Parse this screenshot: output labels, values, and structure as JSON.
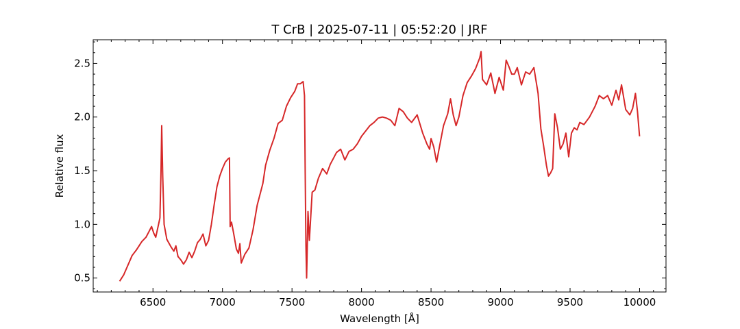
{
  "chart_data": {
    "type": "line",
    "title": "T CrB | 2025-07-11 | 05:52:20 | JRF",
    "xlabel": "Wavelength [Å]",
    "ylabel": "Relative flux",
    "xlim": [
      6070,
      10190
    ],
    "ylim": [
      0.37,
      2.72
    ],
    "x_ticks": [
      6500,
      7000,
      7500,
      8000,
      8500,
      9000,
      9500,
      10000
    ],
    "y_ticks": [
      0.5,
      1.0,
      1.5,
      2.0,
      2.5
    ],
    "x_tick_labels": [
      "6500",
      "7000",
      "7500",
      "8000",
      "8500",
      "9000",
      "9500",
      "10000"
    ],
    "y_tick_labels": [
      "0.5",
      "1.0",
      "1.5",
      "2.0",
      "2.5"
    ],
    "grid": false,
    "series": [
      {
        "color": "#d62728",
        "points": [
          [
            6260,
            0.47
          ],
          [
            6290,
            0.53
          ],
          [
            6320,
            0.62
          ],
          [
            6350,
            0.71
          ],
          [
            6380,
            0.76
          ],
          [
            6420,
            0.84
          ],
          [
            6450,
            0.88
          ],
          [
            6470,
            0.93
          ],
          [
            6490,
            0.98
          ],
          [
            6505,
            0.92
          ],
          [
            6520,
            0.88
          ],
          [
            6540,
            1.0
          ],
          [
            6550,
            1.06
          ],
          [
            6558,
            1.5
          ],
          [
            6563,
            1.92
          ],
          [
            6570,
            1.45
          ],
          [
            6580,
            1.0
          ],
          [
            6600,
            0.86
          ],
          [
            6630,
            0.79
          ],
          [
            6650,
            0.75
          ],
          [
            6665,
            0.8
          ],
          [
            6680,
            0.7
          ],
          [
            6700,
            0.67
          ],
          [
            6720,
            0.63
          ],
          [
            6740,
            0.67
          ],
          [
            6760,
            0.74
          ],
          [
            6780,
            0.69
          ],
          [
            6800,
            0.75
          ],
          [
            6820,
            0.83
          ],
          [
            6840,
            0.86
          ],
          [
            6860,
            0.91
          ],
          [
            6880,
            0.8
          ],
          [
            6900,
            0.85
          ],
          [
            6920,
            1.0
          ],
          [
            6940,
            1.18
          ],
          [
            6960,
            1.35
          ],
          [
            6980,
            1.45
          ],
          [
            7000,
            1.52
          ],
          [
            7020,
            1.58
          ],
          [
            7040,
            1.61
          ],
          [
            7050,
            1.62
          ],
          [
            7055,
            0.98
          ],
          [
            7065,
            1.02
          ],
          [
            7080,
            0.92
          ],
          [
            7100,
            0.77
          ],
          [
            7115,
            0.73
          ],
          [
            7125,
            0.82
          ],
          [
            7135,
            0.64
          ],
          [
            7160,
            0.72
          ],
          [
            7190,
            0.78
          ],
          [
            7220,
            0.95
          ],
          [
            7250,
            1.18
          ],
          [
            7270,
            1.28
          ],
          [
            7290,
            1.38
          ],
          [
            7310,
            1.55
          ],
          [
            7340,
            1.69
          ],
          [
            7370,
            1.8
          ],
          [
            7400,
            1.94
          ],
          [
            7430,
            1.97
          ],
          [
            7460,
            2.1
          ],
          [
            7490,
            2.18
          ],
          [
            7520,
            2.24
          ],
          [
            7540,
            2.31
          ],
          [
            7560,
            2.31
          ],
          [
            7580,
            2.33
          ],
          [
            7590,
            2.2
          ],
          [
            7595,
            1.5
          ],
          [
            7600,
            0.8
          ],
          [
            7605,
            0.5
          ],
          [
            7615,
            1.12
          ],
          [
            7625,
            0.85
          ],
          [
            7635,
            1.08
          ],
          [
            7645,
            1.3
          ],
          [
            7665,
            1.32
          ],
          [
            7690,
            1.43
          ],
          [
            7720,
            1.52
          ],
          [
            7750,
            1.47
          ],
          [
            7775,
            1.56
          ],
          [
            7800,
            1.62
          ],
          [
            7820,
            1.67
          ],
          [
            7850,
            1.7
          ],
          [
            7880,
            1.6
          ],
          [
            7910,
            1.68
          ],
          [
            7940,
            1.7
          ],
          [
            7970,
            1.75
          ],
          [
            8000,
            1.82
          ],
          [
            8030,
            1.87
          ],
          [
            8060,
            1.92
          ],
          [
            8090,
            1.95
          ],
          [
            8120,
            1.99
          ],
          [
            8150,
            2.0
          ],
          [
            8180,
            1.99
          ],
          [
            8210,
            1.97
          ],
          [
            8240,
            1.92
          ],
          [
            8270,
            2.08
          ],
          [
            8300,
            2.05
          ],
          [
            8330,
            1.99
          ],
          [
            8360,
            1.95
          ],
          [
            8400,
            2.02
          ],
          [
            8440,
            1.85
          ],
          [
            8470,
            1.75
          ],
          [
            8490,
            1.7
          ],
          [
            8500,
            1.8
          ],
          [
            8520,
            1.72
          ],
          [
            8540,
            1.58
          ],
          [
            8560,
            1.72
          ],
          [
            8590,
            1.92
          ],
          [
            8620,
            2.03
          ],
          [
            8640,
            2.17
          ],
          [
            8660,
            2.02
          ],
          [
            8680,
            1.92
          ],
          [
            8700,
            2.0
          ],
          [
            8730,
            2.2
          ],
          [
            8760,
            2.32
          ],
          [
            8790,
            2.38
          ],
          [
            8820,
            2.45
          ],
          [
            8850,
            2.55
          ],
          [
            8860,
            2.61
          ],
          [
            8870,
            2.35
          ],
          [
            8900,
            2.3
          ],
          [
            8930,
            2.41
          ],
          [
            8960,
            2.22
          ],
          [
            8990,
            2.37
          ],
          [
            9020,
            2.25
          ],
          [
            9040,
            2.53
          ],
          [
            9060,
            2.47
          ],
          [
            9080,
            2.4
          ],
          [
            9100,
            2.4
          ],
          [
            9120,
            2.46
          ],
          [
            9150,
            2.3
          ],
          [
            9180,
            2.42
          ],
          [
            9210,
            2.4
          ],
          [
            9240,
            2.46
          ],
          [
            9270,
            2.22
          ],
          [
            9290,
            1.89
          ],
          [
            9310,
            1.73
          ],
          [
            9330,
            1.55
          ],
          [
            9345,
            1.45
          ],
          [
            9360,
            1.48
          ],
          [
            9375,
            1.52
          ],
          [
            9390,
            2.03
          ],
          [
            9410,
            1.9
          ],
          [
            9430,
            1.7
          ],
          [
            9450,
            1.75
          ],
          [
            9470,
            1.85
          ],
          [
            9490,
            1.63
          ],
          [
            9510,
            1.85
          ],
          [
            9530,
            1.9
          ],
          [
            9550,
            1.88
          ],
          [
            9570,
            1.95
          ],
          [
            9600,
            1.93
          ],
          [
            9640,
            2.0
          ],
          [
            9680,
            2.1
          ],
          [
            9710,
            2.2
          ],
          [
            9740,
            2.17
          ],
          [
            9770,
            2.2
          ],
          [
            9800,
            2.11
          ],
          [
            9830,
            2.25
          ],
          [
            9850,
            2.16
          ],
          [
            9870,
            2.3
          ],
          [
            9900,
            2.07
          ],
          [
            9930,
            2.02
          ],
          [
            9950,
            2.08
          ],
          [
            9970,
            2.22
          ],
          [
            9985,
            2.05
          ],
          [
            10000,
            1.82
          ]
        ]
      }
    ]
  }
}
